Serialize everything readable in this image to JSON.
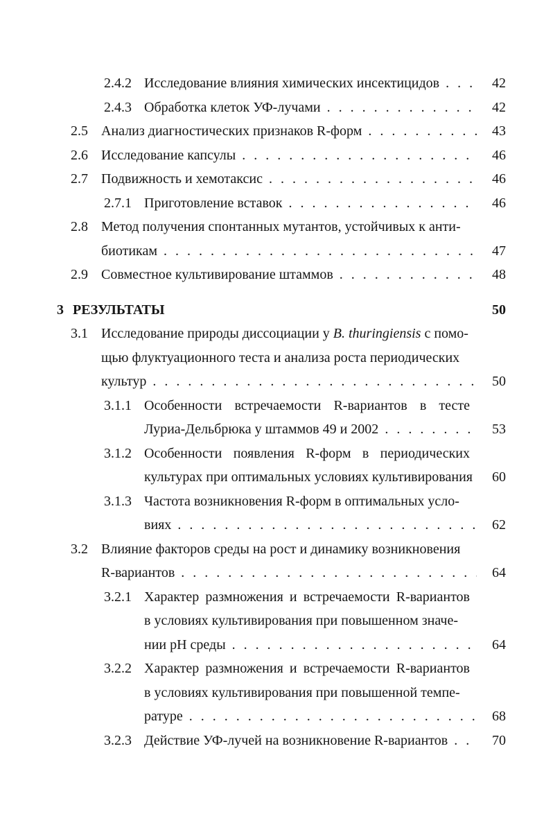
{
  "colors": {
    "text": "#161616",
    "background": "#ffffff"
  },
  "leader_dots": ". . . . . . . . . . . . . . . . . . . . . . . . . . . . . . . . . . . . . . . .",
  "toc_entries": [
    {
      "level": "subsection",
      "num": "2.4.2",
      "lines": [
        {
          "text": "Исследование влияния химических инсектицидов",
          "leader": true,
          "page": "42"
        }
      ]
    },
    {
      "level": "subsection",
      "num": "2.4.3",
      "lines": [
        {
          "text": "Обработка клеток УФ-лучами",
          "leader": true,
          "page": "42"
        }
      ]
    },
    {
      "level": "section",
      "num": "2.5",
      "lines": [
        {
          "text": "Анализ диагностических признаков R-форм",
          "leader": true,
          "page": "43"
        }
      ]
    },
    {
      "level": "section",
      "num": "2.6",
      "lines": [
        {
          "text": "Исследование капсулы",
          "leader": true,
          "page": "46"
        }
      ]
    },
    {
      "level": "section",
      "num": "2.7",
      "lines": [
        {
          "text": "Подвижность и хемотаксис",
          "leader": true,
          "page": "46"
        }
      ]
    },
    {
      "level": "subsection",
      "num": "2.7.1",
      "lines": [
        {
          "text": "Приготовление вставок",
          "leader": true,
          "page": "46"
        }
      ]
    },
    {
      "level": "section",
      "num": "2.8",
      "lines": [
        {
          "text": "Метод получения спонтанных мутантов, устойчивых к анти-"
        },
        {
          "text": "биотикам",
          "leader": true,
          "page": "47"
        }
      ]
    },
    {
      "level": "section",
      "num": "2.9",
      "lines": [
        {
          "text": "Совместное культивирование штаммов",
          "leader": true,
          "page": "48"
        }
      ]
    },
    {
      "level": "chapter",
      "num": "3",
      "lines": [
        {
          "text": "РЕЗУЛЬТАТЫ",
          "page": "50"
        }
      ]
    },
    {
      "level": "section",
      "num": "3.1",
      "lines": [
        {
          "text": "Исследование природы диссоциации у ",
          "italic": "B. thuringiensis",
          "after": " с помо-"
        },
        {
          "text": "щью флуктуационного теста и анализа роста периодических"
        },
        {
          "text": "культур",
          "leader": true,
          "page": "50"
        }
      ]
    },
    {
      "level": "subsection",
      "num": "3.1.1",
      "lines": [
        {
          "text": "Особенности встречаемости R-вариантов в тесте",
          "justify": true
        },
        {
          "text": "Луриа-Дельбрюка у штаммов 49 и 2002",
          "leader": true,
          "page": "53"
        }
      ]
    },
    {
      "level": "subsection",
      "num": "3.1.2",
      "lines": [
        {
          "text": "Особенности появления R-форм в периодических",
          "justify": true
        },
        {
          "text": "культурах при оптимальных условиях культивирования",
          "page": "60"
        }
      ]
    },
    {
      "level": "subsection",
      "num": "3.1.3",
      "lines": [
        {
          "text": "Частота возникновения R-форм в оптимальных усло-"
        },
        {
          "text": "виях",
          "leader": true,
          "page": "62"
        }
      ]
    },
    {
      "level": "section",
      "num": "3.2",
      "lines": [
        {
          "text": "Влияние факторов среды на рост и динамику возникновения"
        },
        {
          "text": "R-вариантов",
          "leader": true,
          "page": "64"
        }
      ]
    },
    {
      "level": "subsection",
      "num": "3.2.1",
      "lines": [
        {
          "text": "Характер размножения и встречаемости R-вариантов",
          "justify": true
        },
        {
          "text": "в условиях культивирования при повышенном значе-"
        },
        {
          "text": "нии pH среды",
          "leader": true,
          "page": "64"
        }
      ]
    },
    {
      "level": "subsection",
      "num": "3.2.2",
      "lines": [
        {
          "text": "Характер размножения и встречаемости R-вариантов",
          "justify": true
        },
        {
          "text": "в условиях культивирования при повышенной темпе-"
        },
        {
          "text": "ратуре",
          "leader": true,
          "page": "68"
        }
      ]
    },
    {
      "level": "subsection",
      "num": "3.2.3",
      "lines": [
        {
          "text": "Действие УФ-лучей на возникновение R-вариантов",
          "leader": true,
          "page": "70"
        }
      ]
    }
  ]
}
